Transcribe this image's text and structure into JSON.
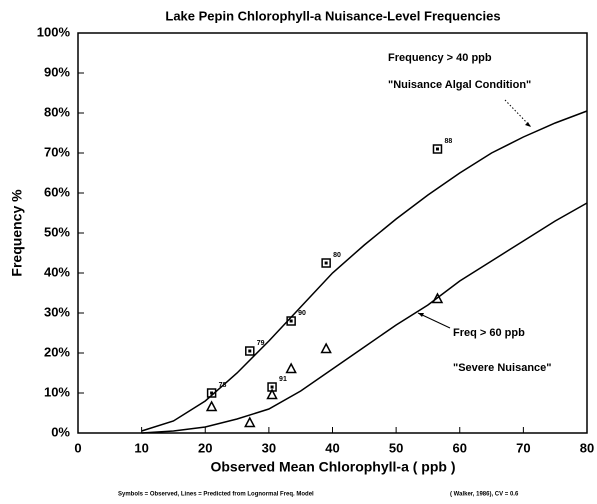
{
  "chart_data": {
    "type": "scatter",
    "title": "Lake Pepin Chlorophyll-a Nuisance-Level Frequencies",
    "xlabel": "Observed Mean Chlorophyll-a ( ppb )",
    "ylabel": "Frequency %",
    "xlim": [
      0,
      80
    ],
    "xticks": [
      0,
      10,
      20,
      30,
      40,
      50,
      60,
      70,
      80
    ],
    "ylim": [
      0,
      100
    ],
    "yticks": [
      {
        "value": 0,
        "label": "0%"
      },
      {
        "value": 10,
        "label": "10%"
      },
      {
        "value": 20,
        "label": "20%"
      },
      {
        "value": 30,
        "label": "30%"
      },
      {
        "value": 40,
        "label": "40%"
      },
      {
        "value": 50,
        "label": "50%"
      },
      {
        "value": 60,
        "label": "60%"
      },
      {
        "value": 70,
        "label": "70%"
      },
      {
        "value": 80,
        "label": "80%"
      },
      {
        "value": 90,
        "label": "90%"
      },
      {
        "value": 100,
        "label": "100%"
      }
    ],
    "series": [
      {
        "type": "scatter",
        "marker": "square",
        "color": "#000000",
        "x": [
          21,
          27,
          30.5,
          33.5,
          39,
          56.5
        ],
        "values": [
          10,
          20.5,
          11.5,
          28,
          42.5,
          71
        ],
        "labels": [
          "78",
          "79",
          "91",
          "90",
          "80",
          "88"
        ]
      },
      {
        "type": "scatter",
        "marker": "triangle",
        "color": "#000000",
        "x": [
          21,
          27,
          30.5,
          33.5,
          39,
          56.5
        ],
        "values": [
          6.5,
          2.5,
          9.5,
          16,
          21,
          33.5
        ]
      },
      {
        "type": "line",
        "color": "#000000",
        "x": [
          10,
          15,
          20,
          25,
          30,
          35,
          40,
          45,
          50,
          55,
          60,
          65,
          70,
          75,
          80
        ],
        "values": [
          0.5,
          3,
          8,
          15,
          23,
          31.5,
          40,
          47,
          53.5,
          59.5,
          65,
          70,
          74,
          77.5,
          80.5
        ]
      },
      {
        "type": "line",
        "color": "#000000",
        "x": [
          10,
          15,
          20,
          25,
          30,
          35,
          40,
          45,
          50,
          55,
          60,
          65,
          70,
          75,
          80
        ],
        "values": [
          0,
          0.5,
          1.5,
          3.5,
          6,
          10.5,
          16,
          21.5,
          27,
          32,
          38,
          43,
          48,
          53,
          57.5
        ]
      }
    ],
    "annotations": [
      "Frequency > 40 ppb",
      "\"Nuisance Algal Condition\"",
      "Freq > 60 ppb",
      "\"Severe Nuisance\""
    ],
    "footnotes": [
      "Symbols = Observed, Lines = Predicted from Lognormal Freq. Model",
      "( Walker, 1986), CV = 0.6"
    ]
  }
}
